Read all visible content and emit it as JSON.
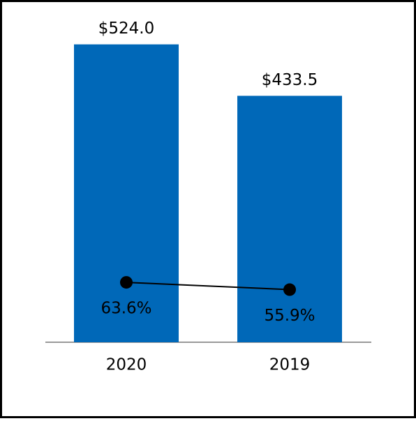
{
  "chart_data": {
    "type": "bar",
    "categories": [
      "2020",
      "2019"
    ],
    "series": [
      {
        "type": "bar",
        "color": "#0068b8",
        "values": [
          524.0,
          433.5
        ],
        "value_labels": [
          "$524.0",
          "$433.5"
        ]
      },
      {
        "type": "line",
        "axis": "y2",
        "color": "#000000",
        "values": [
          63.6,
          55.9
        ],
        "value_labels": [
          "63.6%",
          "55.9%"
        ]
      }
    ],
    "ylim": [
      0,
      553
    ],
    "y2lim": [
      0,
      334
    ]
  }
}
